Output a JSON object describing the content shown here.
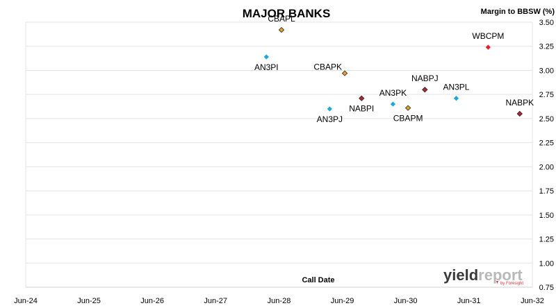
{
  "chart_data": {
    "type": "scatter",
    "title": "MAJOR BANKS",
    "xlabel": "Call Date",
    "ylabel": "Margin to BBSW (%)",
    "x_axis_type": "date",
    "xlim": [
      "2024-06-01",
      "2032-06-01"
    ],
    "ylim": [
      0.75,
      3.5
    ],
    "y_ticks": [
      "0.75",
      "1.00",
      "1.25",
      "1.50",
      "1.75",
      "2.00",
      "2.25",
      "2.50",
      "2.75",
      "3.00",
      "3.25",
      "3.50"
    ],
    "x_ticks": [
      {
        "label": "Jun-24",
        "date": "2024-06-01"
      },
      {
        "label": "Jun-25",
        "date": "2025-06-01"
      },
      {
        "label": "Jun-26",
        "date": "2026-06-01"
      },
      {
        "label": "Jun-27",
        "date": "2027-06-01"
      },
      {
        "label": "Jun-28",
        "date": "2028-06-01"
      },
      {
        "label": "Jun-29",
        "date": "2029-06-01"
      },
      {
        "label": "Jun-30",
        "date": "2030-06-01"
      },
      {
        "label": "Jun-31",
        "date": "2031-06-01"
      },
      {
        "label": "Jun-32",
        "date": "2032-06-01"
      }
    ],
    "grid": "horizontal",
    "y_axis_side": "right",
    "colors": {
      "ANZ": "#1ea7dc",
      "CBA": "#e0a030",
      "NAB": "#b0282e",
      "WBC": "#e8202a"
    },
    "points": [
      {
        "label": "AN3PI",
        "x": "2028-03-20",
        "y": 3.14,
        "bank": "ANZ",
        "label_pos": "below"
      },
      {
        "label": "CBAPL",
        "x": "2028-06-15",
        "y": 3.42,
        "bank": "CBA",
        "label_pos": "above"
      },
      {
        "label": "AN3PJ",
        "x": "2029-03-20",
        "y": 2.6,
        "bank": "ANZ",
        "label_pos": "below"
      },
      {
        "label": "CBAPK",
        "x": "2029-06-15",
        "y": 2.97,
        "bank": "CBA",
        "label_pos": "above-left"
      },
      {
        "label": "NABPI",
        "x": "2029-09-20",
        "y": 2.71,
        "bank": "NAB",
        "label_pos": "below"
      },
      {
        "label": "AN3PK",
        "x": "2030-03-20",
        "y": 2.65,
        "bank": "ANZ",
        "label_pos": "above"
      },
      {
        "label": "CBAPM",
        "x": "2030-06-15",
        "y": 2.61,
        "bank": "CBA",
        "label_pos": "below"
      },
      {
        "label": "NABPJ",
        "x": "2030-09-20",
        "y": 2.8,
        "bank": "NAB",
        "label_pos": "above"
      },
      {
        "label": "AN3PL",
        "x": "2031-03-20",
        "y": 2.71,
        "bank": "ANZ",
        "label_pos": "above"
      },
      {
        "label": "WBCPM",
        "x": "2031-09-20",
        "y": 3.24,
        "bank": "WBC",
        "label_pos": "above"
      },
      {
        "label": "NABPK",
        "x": "2032-03-20",
        "y": 2.55,
        "bank": "NAB",
        "label_pos": "above"
      }
    ]
  },
  "logo": {
    "text_a": "yield",
    "text_b": "report",
    "byline": "by Foresight",
    "color_dark": "#3a3a3a",
    "color_light": "#b9b9b9",
    "color_accent": "#d33"
  }
}
